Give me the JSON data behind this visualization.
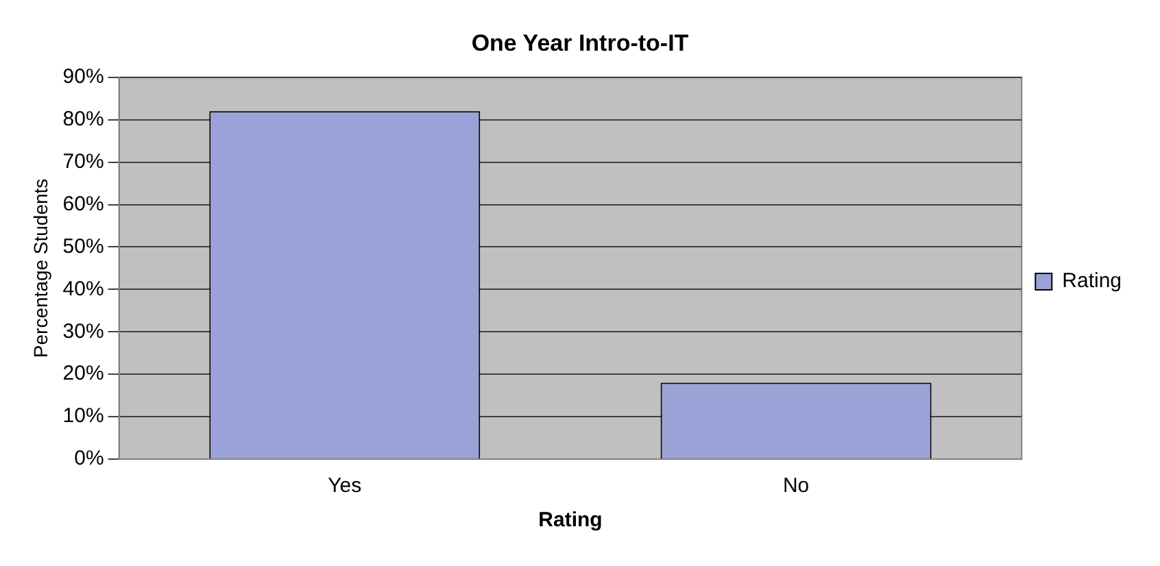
{
  "chart_data": {
    "type": "bar",
    "title": "One Year Intro-to-IT",
    "xlabel": "Rating",
    "ylabel": "Percentage Students",
    "categories": [
      "Yes",
      "No"
    ],
    "series": [
      {
        "name": "Rating",
        "color": "#9aa2d8",
        "values": [
          82,
          18
        ]
      }
    ],
    "ylim": [
      0,
      90
    ],
    "yticks": [
      {
        "value": 0,
        "label": "0%"
      },
      {
        "value": 10,
        "label": "10%"
      },
      {
        "value": 20,
        "label": "20%"
      },
      {
        "value": 30,
        "label": "30%"
      },
      {
        "value": 40,
        "label": "40%"
      },
      {
        "value": 50,
        "label": "50%"
      },
      {
        "value": 60,
        "label": "60%"
      },
      {
        "value": 70,
        "label": "70%"
      },
      {
        "value": 80,
        "label": "80%"
      },
      {
        "value": 90,
        "label": "90%"
      }
    ],
    "grid": "y",
    "legend": "right"
  }
}
